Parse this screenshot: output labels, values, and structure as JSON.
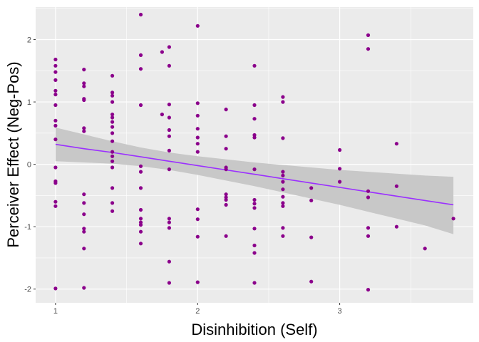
{
  "chart_data": {
    "type": "scatter",
    "xlabel": "Disinhibition (Self)",
    "ylabel": "Perceiver Effect (Neg-Pos)",
    "xlim": [
      0.86,
      3.94
    ],
    "ylim": [
      -2.22,
      2.52
    ],
    "x_ticks": [
      1,
      2,
      3
    ],
    "y_ticks": [
      -2,
      -1,
      0,
      1,
      2
    ],
    "x_tick_labels": [
      "1",
      "2",
      "3"
    ],
    "y_tick_labels": [
      "-2",
      "-1",
      "0",
      "1",
      "2"
    ],
    "grid": true,
    "legend": "none",
    "colors": {
      "panel": "#ebebeb",
      "grid_major": "#ffffff",
      "points": "#8b008b",
      "trend_line": "#9b30ff",
      "confidence_band": "#c8c8c8"
    },
    "points": [
      [
        1.0,
        1.68
      ],
      [
        1.0,
        1.58
      ],
      [
        1.0,
        1.48
      ],
      [
        1.0,
        1.35
      ],
      [
        1.0,
        1.18
      ],
      [
        1.0,
        1.12
      ],
      [
        1.0,
        0.95
      ],
      [
        1.0,
        0.7
      ],
      [
        1.0,
        0.62
      ],
      [
        1.0,
        0.4
      ],
      [
        1.0,
        -0.05
      ],
      [
        1.0,
        -0.27
      ],
      [
        1.0,
        -0.3
      ],
      [
        1.0,
        -0.6
      ],
      [
        1.0,
        -0.67
      ],
      [
        1.0,
        -1.99
      ],
      [
        1.2,
        1.52
      ],
      [
        1.2,
        1.3
      ],
      [
        1.2,
        1.25
      ],
      [
        1.2,
        1.05
      ],
      [
        1.2,
        1.03
      ],
      [
        1.2,
        0.58
      ],
      [
        1.2,
        0.53
      ],
      [
        1.2,
        -0.48
      ],
      [
        1.2,
        -0.62
      ],
      [
        1.2,
        -0.8
      ],
      [
        1.2,
        -1.03
      ],
      [
        1.2,
        -1.08
      ],
      [
        1.2,
        -1.35
      ],
      [
        1.2,
        -1.98
      ],
      [
        1.4,
        1.42
      ],
      [
        1.4,
        1.15
      ],
      [
        1.4,
        1.1
      ],
      [
        1.4,
        1.0
      ],
      [
        1.4,
        0.8
      ],
      [
        1.4,
        0.75
      ],
      [
        1.4,
        0.68
      ],
      [
        1.4,
        0.6
      ],
      [
        1.4,
        0.5
      ],
      [
        1.4,
        0.37
      ],
      [
        1.4,
        0.2
      ],
      [
        1.4,
        0.13
      ],
      [
        1.4,
        0.05
      ],
      [
        1.4,
        -0.05
      ],
      [
        1.4,
        -0.38
      ],
      [
        1.4,
        -0.62
      ],
      [
        1.4,
        -0.75
      ],
      [
        1.6,
        2.4
      ],
      [
        1.6,
        1.75
      ],
      [
        1.6,
        1.53
      ],
      [
        1.6,
        0.95
      ],
      [
        1.6,
        -0.03
      ],
      [
        1.6,
        -0.12
      ],
      [
        1.6,
        -0.38
      ],
      [
        1.6,
        -0.73
      ],
      [
        1.6,
        -0.87
      ],
      [
        1.6,
        -0.93
      ],
      [
        1.6,
        -0.97
      ],
      [
        1.6,
        -1.08
      ],
      [
        1.6,
        -1.27
      ],
      [
        1.75,
        1.8
      ],
      [
        1.75,
        0.8
      ],
      [
        1.8,
        1.88
      ],
      [
        1.8,
        1.58
      ],
      [
        1.8,
        0.96
      ],
      [
        1.8,
        0.75
      ],
      [
        1.8,
        0.55
      ],
      [
        1.8,
        0.45
      ],
      [
        1.8,
        0.22
      ],
      [
        1.8,
        -0.08
      ],
      [
        1.8,
        -0.87
      ],
      [
        1.8,
        -0.93
      ],
      [
        1.8,
        -1.02
      ],
      [
        1.8,
        -1.56
      ],
      [
        1.8,
        -1.9
      ],
      [
        2.0,
        2.22
      ],
      [
        2.0,
        0.98
      ],
      [
        2.0,
        0.78
      ],
      [
        2.0,
        0.57
      ],
      [
        2.0,
        0.43
      ],
      [
        2.0,
        0.33
      ],
      [
        2.0,
        0.2
      ],
      [
        2.0,
        -0.72
      ],
      [
        2.0,
        -0.88
      ],
      [
        2.0,
        -1.16
      ],
      [
        2.0,
        -1.89
      ],
      [
        2.2,
        0.88
      ],
      [
        2.2,
        0.45
      ],
      [
        2.2,
        0.25
      ],
      [
        2.2,
        -0.05
      ],
      [
        2.2,
        -0.08
      ],
      [
        2.2,
        -0.48
      ],
      [
        2.2,
        -0.53
      ],
      [
        2.2,
        -0.57
      ],
      [
        2.2,
        -0.65
      ],
      [
        2.2,
        -1.15
      ],
      [
        2.4,
        1.58
      ],
      [
        2.4,
        0.95
      ],
      [
        2.4,
        0.73
      ],
      [
        2.4,
        0.47
      ],
      [
        2.4,
        0.43
      ],
      [
        2.4,
        -0.08
      ],
      [
        2.4,
        -0.57
      ],
      [
        2.4,
        -0.63
      ],
      [
        2.4,
        -0.7
      ],
      [
        2.4,
        -1.03
      ],
      [
        2.4,
        -1.3
      ],
      [
        2.4,
        -1.42
      ],
      [
        2.4,
        -1.9
      ],
      [
        2.6,
        1.08
      ],
      [
        2.6,
        1.0
      ],
      [
        2.6,
        0.42
      ],
      [
        2.6,
        -0.12
      ],
      [
        2.6,
        -0.18
      ],
      [
        2.6,
        -0.28
      ],
      [
        2.6,
        -0.4
      ],
      [
        2.6,
        -0.52
      ],
      [
        2.6,
        -0.62
      ],
      [
        2.6,
        -0.67
      ],
      [
        2.6,
        -1.02
      ],
      [
        2.6,
        -1.15
      ],
      [
        2.8,
        -0.38
      ],
      [
        2.8,
        -0.58
      ],
      [
        2.8,
        -1.17
      ],
      [
        2.8,
        -1.88
      ],
      [
        3.0,
        0.23
      ],
      [
        3.0,
        -0.07
      ],
      [
        3.0,
        -0.28
      ],
      [
        3.2,
        2.07
      ],
      [
        3.2,
        1.85
      ],
      [
        3.2,
        -0.43
      ],
      [
        3.2,
        -0.53
      ],
      [
        3.2,
        -1.02
      ],
      [
        3.2,
        -1.15
      ],
      [
        3.2,
        -2.01
      ],
      [
        3.4,
        0.33
      ],
      [
        3.4,
        -0.35
      ],
      [
        3.4,
        -1.0
      ],
      [
        3.6,
        -1.35
      ],
      [
        3.8,
        -0.87
      ]
    ],
    "trend": {
      "x": [
        1.0,
        1.2,
        1.4,
        1.6,
        1.8,
        2.0,
        2.2,
        2.4,
        2.6,
        2.8,
        3.0,
        3.2,
        3.4,
        3.6,
        3.8
      ],
      "y": [
        0.32,
        0.25,
        0.19,
        0.12,
        0.05,
        -0.02,
        -0.09,
        -0.16,
        -0.23,
        -0.3,
        -0.37,
        -0.44,
        -0.51,
        -0.58,
        -0.65
      ],
      "lower": [
        0.05,
        0.03,
        0.01,
        -0.03,
        -0.09,
        -0.17,
        -0.26,
        -0.35,
        -0.45,
        -0.55,
        -0.65,
        -0.76,
        -0.87,
        -0.98,
        -1.12
      ],
      "upper": [
        0.59,
        0.48,
        0.37,
        0.27,
        0.19,
        0.13,
        0.08,
        0.03,
        -0.01,
        -0.05,
        -0.09,
        -0.12,
        -0.15,
        -0.18,
        -0.2
      ]
    }
  }
}
